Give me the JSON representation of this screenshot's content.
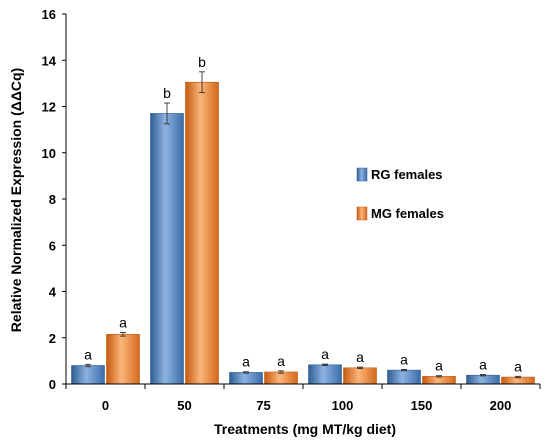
{
  "chart_data": {
    "type": "bar",
    "title": "",
    "xlabel": "Treatments (mg MT/kg diet)",
    "ylabel": "Relative Normalized Expression (ΔΔCq)",
    "categories": [
      "0",
      "50",
      "75",
      "100",
      "150",
      "200"
    ],
    "ylim": [
      0,
      16
    ],
    "yticks": [
      "0",
      "2",
      "4",
      "6",
      "8",
      "10",
      "12",
      "14",
      "16"
    ],
    "grid": false,
    "legend_position": "center-right",
    "series": [
      {
        "name": "RG females",
        "color": "#4F81BD",
        "values": [
          0.8,
          11.7,
          0.5,
          0.83,
          0.6,
          0.38
        ],
        "errors": [
          0.05,
          0.45,
          0.03,
          0.03,
          0.03,
          0.03
        ],
        "labels": [
          "a",
          "b",
          "a",
          "a",
          "a",
          "a"
        ]
      },
      {
        "name": "MG females",
        "color": "#F79646",
        "values": [
          2.15,
          13.05,
          0.52,
          0.7,
          0.33,
          0.3
        ],
        "errors": [
          0.08,
          0.45,
          0.05,
          0.03,
          0.03,
          0.03
        ],
        "labels": [
          "a",
          "b",
          "a",
          "a",
          "a",
          "a"
        ]
      }
    ]
  }
}
